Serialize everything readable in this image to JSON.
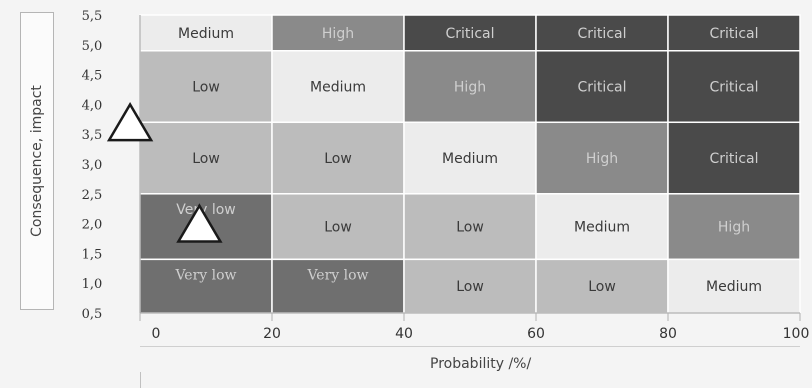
{
  "chart_data": {
    "type": "heatmap",
    "xlabel": "Probability /%/",
    "ylabel": "Consequence, impact",
    "xlim": [
      0,
      100
    ],
    "ylim": [
      0.5,
      5.5
    ],
    "x_ticks": [
      "0",
      "20",
      "40",
      "60",
      "80",
      "100"
    ],
    "y_ticks": [
      "0,5",
      "1,0",
      "1,5",
      "2,0",
      "2,5",
      "3,0",
      "3,5",
      "4,0",
      "4,5",
      "5,0",
      "5,5"
    ],
    "x_bins": [
      "0-20",
      "20-40",
      "40-60",
      "60-80",
      "80-100"
    ],
    "levels": {
      "Very low": "#6f6f6f",
      "Low": "#bcbcbc",
      "Medium": "#ececec",
      "High": "#8a8a8a",
      "Critical": "#4a4a4a"
    },
    "rows": [
      {
        "y_range": [
          4.9,
          5.5
        ],
        "cells": [
          "Medium",
          "High",
          "Critical",
          "Critical",
          "Critical"
        ]
      },
      {
        "y_range": [
          3.7,
          4.9
        ],
        "cells": [
          "Low",
          "Medium",
          "High",
          "Critical",
          "Critical"
        ]
      },
      {
        "y_range": [
          2.5,
          3.7
        ],
        "cells": [
          "Low",
          "Low",
          "Medium",
          "High",
          "Critical"
        ]
      },
      {
        "y_range": [
          1.4,
          2.5
        ],
        "cells": [
          "Very low",
          "Low",
          "Low",
          "Medium",
          "High"
        ]
      },
      {
        "y_range": [
          0.5,
          1.4
        ],
        "cells": [
          "Very low",
          "Very low",
          "Low",
          "Low",
          "Medium"
        ]
      }
    ],
    "markers": [
      {
        "shape": "triangle",
        "x": -1.5,
        "y": 3.7
      },
      {
        "shape": "triangle",
        "x": 9,
        "y": 2.0
      }
    ]
  }
}
